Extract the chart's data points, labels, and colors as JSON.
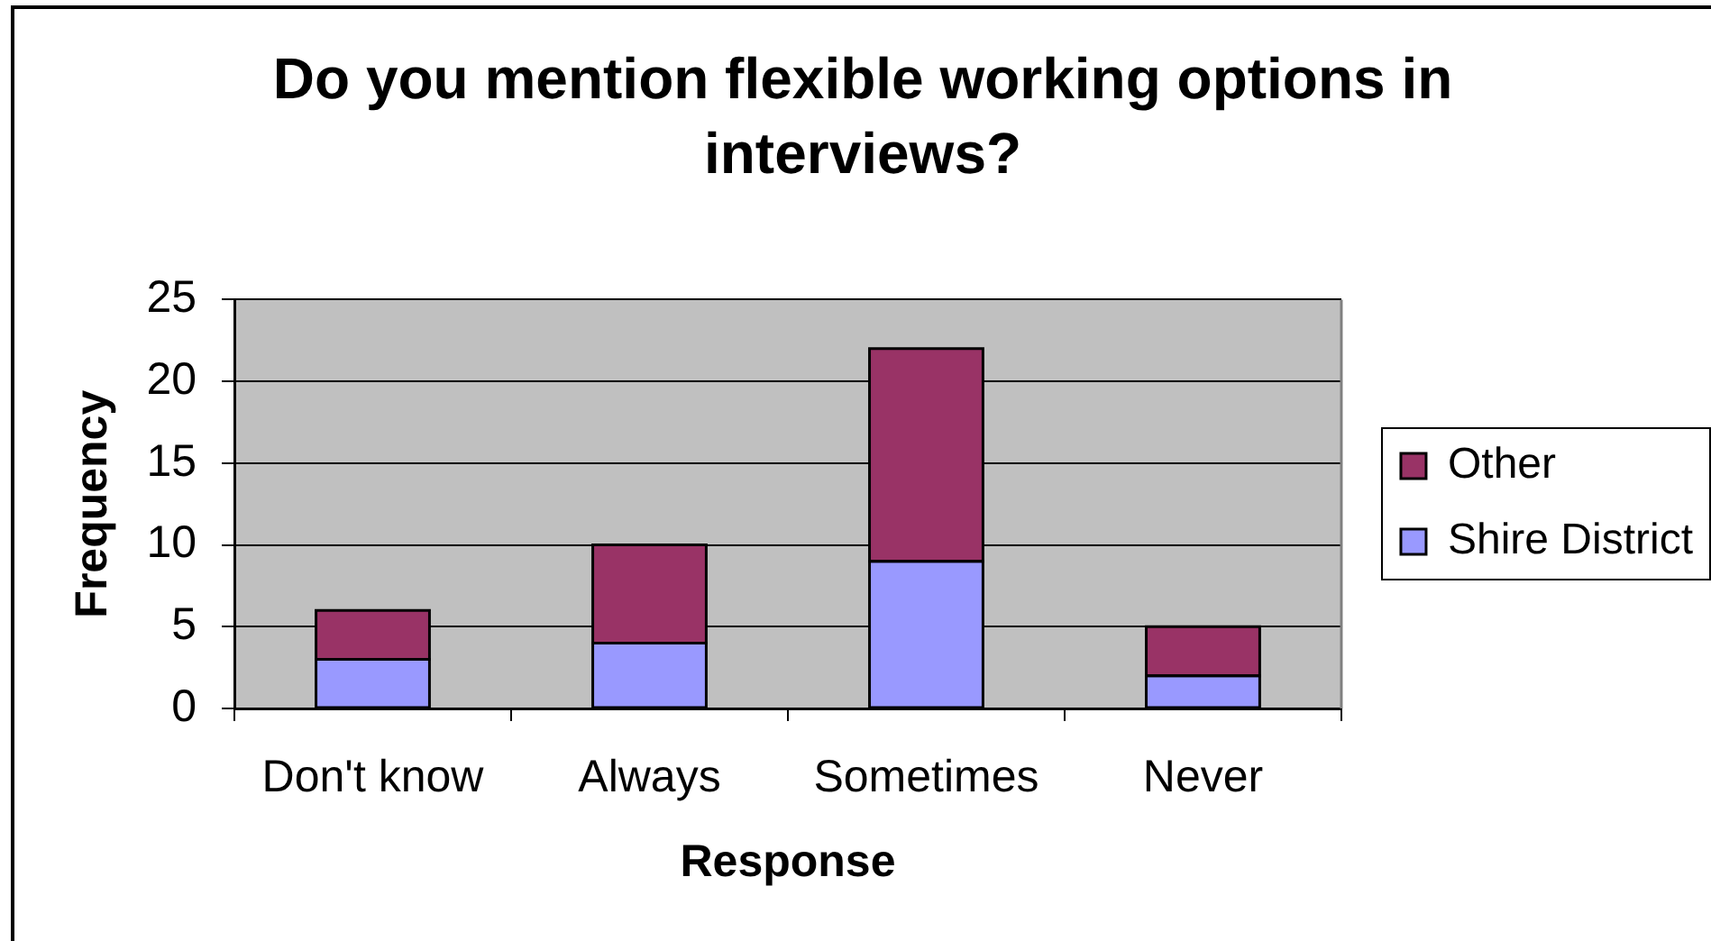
{
  "chart_data": {
    "type": "bar",
    "title": "Do you mention flexible working options in interviews?",
    "xlabel": "Response",
    "ylabel": "Frequency",
    "categories": [
      "Don't know",
      "Always",
      "Sometimes",
      "Never"
    ],
    "series": [
      {
        "name": "Shire District",
        "color": "#9999ff",
        "values": [
          3,
          4,
          9,
          2
        ]
      },
      {
        "name": "Other",
        "color": "#993366",
        "values": [
          3,
          6,
          13,
          3
        ]
      }
    ],
    "stacked": true,
    "ylim": [
      0,
      25
    ],
    "yticks": [
      0,
      5,
      10,
      15,
      20,
      25
    ],
    "grid": "y",
    "legend": "right"
  }
}
